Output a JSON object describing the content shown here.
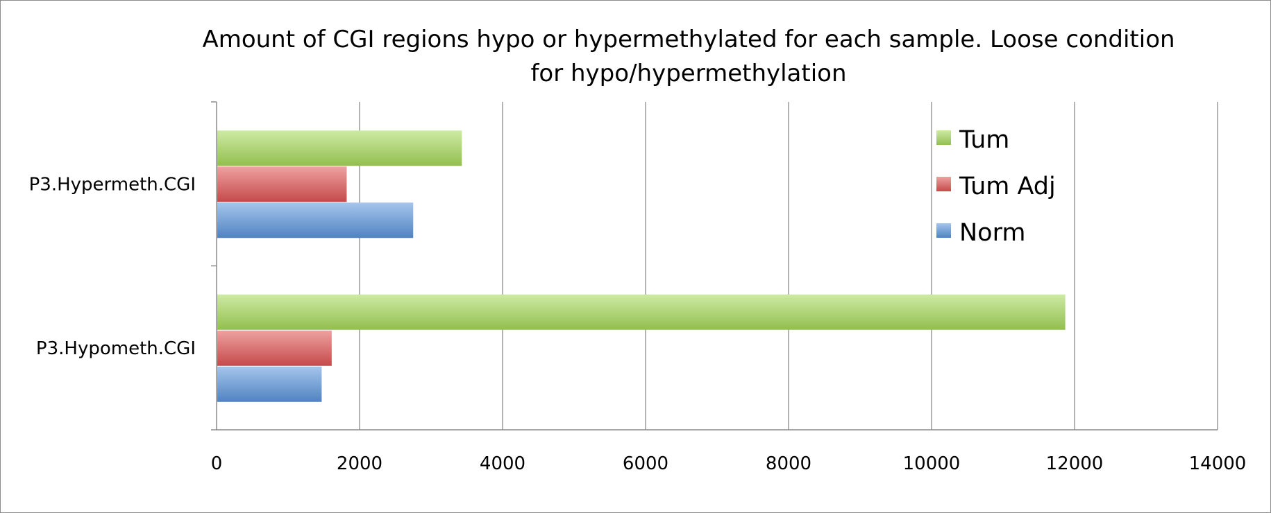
{
  "chart_data": {
    "type": "bar",
    "orientation": "horizontal",
    "title_lines": [
      "Amount of CGI regions hypo or hypermethylated for each sample. Loose condition",
      "for hypo/hypermethylation"
    ],
    "categories": [
      "P3.Hypermeth.CGI",
      "P3.Hypometh.CGI"
    ],
    "series": [
      {
        "name": "Tum",
        "values": [
          3430,
          11870
        ],
        "color": "#a6d95a"
      },
      {
        "name": "Tum Adj",
        "values": [
          1820,
          1610
        ],
        "color": "#e05454"
      },
      {
        "name": "Norm",
        "values": [
          2750,
          1470
        ],
        "color": "#5b95dd"
      }
    ],
    "xlim": [
      0,
      14000
    ],
    "xticks": [
      0,
      2000,
      4000,
      6000,
      8000,
      10000,
      12000,
      14000
    ],
    "xtick_labels": [
      "0",
      "2000",
      "4000",
      "6000",
      "8000",
      "10000",
      "12000",
      "14000"
    ],
    "grid": true,
    "legend_position": "top-right",
    "legend_order": [
      "Tum",
      "Tum Adj",
      "Norm"
    ]
  }
}
